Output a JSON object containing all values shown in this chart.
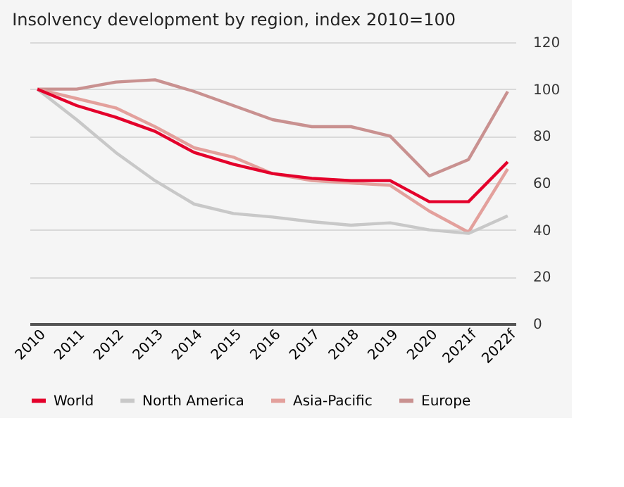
{
  "chart_data": {
    "type": "line",
    "title": "Insolvency development by region, index 2010=100",
    "categories": [
      "2010",
      "2011",
      "2012",
      "2013",
      "2014",
      "2015",
      "2016",
      "2017",
      "2018",
      "2019",
      "2020",
      "2021f",
      "2022f"
    ],
    "series": [
      {
        "name": "World",
        "color": "#e4002b",
        "values": [
          100,
          93,
          88,
          82,
          73,
          68,
          64,
          62,
          61,
          61,
          52,
          52,
          69
        ]
      },
      {
        "name": "North America",
        "color": "#c8c8c8",
        "values": [
          100,
          87,
          73,
          61,
          51,
          47,
          45.5,
          43.5,
          42,
          43,
          40,
          38.5,
          46
        ]
      },
      {
        "name": "Asia-Pacific",
        "color": "#e3a09c",
        "values": [
          100,
          96,
          92,
          84,
          75,
          71,
          64,
          61,
          60,
          59,
          48,
          39,
          66
        ]
      },
      {
        "name": "Europe",
        "color": "#c99190",
        "values": [
          100,
          100,
          103,
          104,
          99,
          93,
          87,
          84,
          84,
          80,
          63,
          70,
          99
        ]
      }
    ],
    "ylim": [
      0,
      120
    ],
    "yticks": [
      0,
      20,
      40,
      60,
      80,
      100,
      120
    ],
    "grid": "y",
    "legend": "bottom",
    "marker": "none",
    "line_style": "solid"
  }
}
